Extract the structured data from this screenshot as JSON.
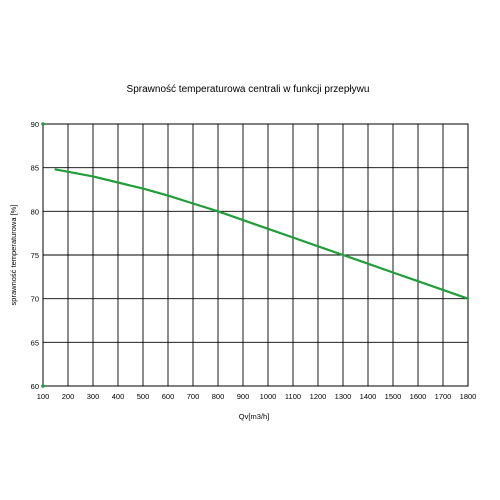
{
  "chart_data": {
    "type": "line",
    "title": "Sprawność temperaturowa centrali w funkcji przepływu",
    "xlabel": "Qv[m3/h]",
    "ylabel": "sprawność temperaturowa [%]",
    "xlim": [
      100,
      1800
    ],
    "ylim": [
      60,
      90
    ],
    "xticks": [
      "100",
      "200",
      "300",
      "400",
      "500",
      "600",
      "700",
      "800",
      "900",
      "1000",
      "1100",
      "1200",
      "1300",
      "1400",
      "1500",
      "1600",
      "1700",
      "1800"
    ],
    "yticks": [
      "60",
      "65",
      "70",
      "75",
      "80",
      "85",
      "90"
    ],
    "grid": true,
    "series": [
      {
        "color": "#1f9e3a",
        "x": [
          150,
          300,
          400,
          500,
          600,
          700,
          800,
          900,
          1000,
          1100,
          1200,
          1300,
          1400,
          1500,
          1600,
          1700,
          1800
        ],
        "y": [
          84.8,
          84.0,
          83.3,
          82.6,
          81.8,
          80.9,
          80.0,
          79.0,
          78.0,
          77.0,
          76.0,
          75.0,
          74.0,
          73.0,
          72.0,
          71.0,
          70.0
        ]
      }
    ],
    "colors": {
      "axis": "#000000",
      "grid": "#000000",
      "marker": "#1f9e3a"
    }
  }
}
